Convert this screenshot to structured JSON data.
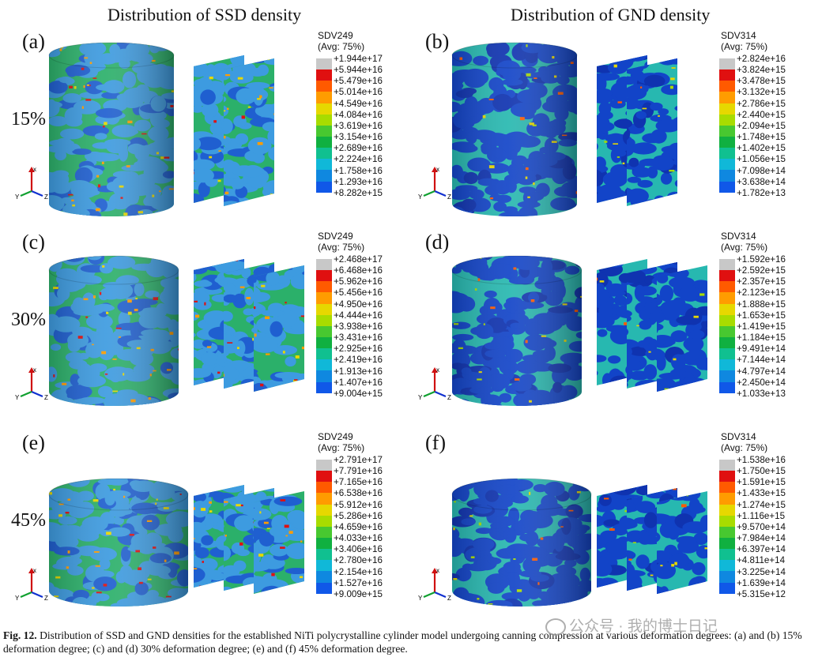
{
  "titles": {
    "ssd": "Distribution of SSD density",
    "gnd": "Distribution of GND density"
  },
  "axis_labels": {
    "x": "x",
    "y": "Y",
    "z": "Z"
  },
  "colors": {
    "scale": [
      "#c8c8c8",
      "#e01010",
      "#ff5a00",
      "#ff9c00",
      "#e6d800",
      "#a8dc00",
      "#48c830",
      "#10b040",
      "#10c090",
      "#10b8d8",
      "#0f88e0",
      "#1058e8",
      "#1030d8"
    ],
    "ssd_base": "#2bb06a",
    "ssd_grain": "#3d9be0",
    "gnd_base": "#1244c8",
    "gnd_net": "#27b8b0"
  },
  "panels": [
    {
      "label": "(a)",
      "degree": "15%",
      "kind": "ssd",
      "legend": {
        "title": "SDV249",
        "subtitle": "(Avg: 75%)",
        "values": [
          "+1.944e+17",
          "+5.944e+16",
          "+5.479e+16",
          "+5.014e+16",
          "+4.549e+16",
          "+4.084e+16",
          "+3.619e+16",
          "+3.154e+16",
          "+2.689e+16",
          "+2.224e+16",
          "+1.758e+16",
          "+1.293e+16",
          "+8.282e+15"
        ]
      }
    },
    {
      "label": "(b)",
      "degree": "",
      "kind": "gnd",
      "legend": {
        "title": "SDV314",
        "subtitle": "(Avg: 75%)",
        "values": [
          "+2.824e+16",
          "+3.824e+15",
          "+3.478e+15",
          "+3.132e+15",
          "+2.786e+15",
          "+2.440e+15",
          "+2.094e+15",
          "+1.748e+15",
          "+1.402e+15",
          "+1.056e+15",
          "+7.098e+14",
          "+3.638e+14",
          "+1.782e+13"
        ]
      }
    },
    {
      "label": "(c)",
      "degree": "30%",
      "kind": "ssd",
      "legend": {
        "title": "SDV249",
        "subtitle": "(Avg: 75%)",
        "values": [
          "+2.468e+17",
          "+6.468e+16",
          "+5.962e+16",
          "+5.456e+16",
          "+4.950e+16",
          "+4.444e+16",
          "+3.938e+16",
          "+3.431e+16",
          "+2.925e+16",
          "+2.419e+16",
          "+1.913e+16",
          "+1.407e+16",
          "+9.004e+15"
        ]
      }
    },
    {
      "label": "(d)",
      "degree": "",
      "kind": "gnd",
      "legend": {
        "title": "SDV314",
        "subtitle": "(Avg: 75%)",
        "values": [
          "+1.592e+16",
          "+2.592e+15",
          "+2.357e+15",
          "+2.123e+15",
          "+1.888e+15",
          "+1.653e+15",
          "+1.419e+15",
          "+1.184e+15",
          "+9.491e+14",
          "+7.144e+14",
          "+4.797e+14",
          "+2.450e+14",
          "+1.033e+13"
        ]
      }
    },
    {
      "label": "(e)",
      "degree": "45%",
      "kind": "ssd",
      "legend": {
        "title": "SDV249",
        "subtitle": "(Avg: 75%)",
        "values": [
          "+2.791e+17",
          "+7.791e+16",
          "+7.165e+16",
          "+6.538e+16",
          "+5.912e+16",
          "+5.286e+16",
          "+4.659e+16",
          "+4.033e+16",
          "+3.406e+16",
          "+2.780e+16",
          "+2.154e+16",
          "+1.527e+16",
          "+9.009e+15"
        ]
      }
    },
    {
      "label": "(f)",
      "degree": "",
      "kind": "gnd",
      "legend": {
        "title": "SDV314",
        "subtitle": "(Avg: 75%)",
        "values": [
          "+1.538e+16",
          "+1.750e+15",
          "+1.591e+15",
          "+1.433e+15",
          "+1.274e+15",
          "+1.116e+15",
          "+9.570e+14",
          "+7.984e+14",
          "+6.397e+14",
          "+4.811e+14",
          "+3.225e+14",
          "+1.639e+14",
          "+5.315e+12"
        ]
      }
    }
  ],
  "caption": {
    "label": "Fig. 12.",
    "text": " Distribution of SSD and GND densities for the established NiTi polycrystalline cylinder model undergoing canning compression at various deformation degrees: (a) and (b) 15% deformation degree; (c) and (d) 30% deformation degree; (e) and (f) 45% deformation degree."
  },
  "watermark": "公众号 · 我的博士日记"
}
